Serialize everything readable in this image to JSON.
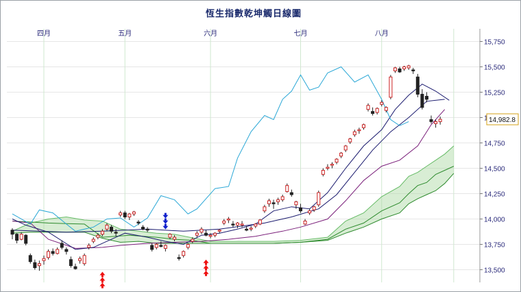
{
  "chart_data": {
    "type": "candlestick",
    "title": "恆生指數乾坤觸日線圖",
    "x_tick_labels": [
      "四月",
      "五月",
      "六月",
      "七月",
      "八月"
    ],
    "y_tick_labels": [
      "15,750",
      "15,500",
      "15,250",
      "15,000",
      "14,750",
      "14,500",
      "14,250",
      "14,000",
      "13,750",
      "13,500"
    ],
    "y_ticks": [
      15750,
      15500,
      15250,
      15000,
      14750,
      14500,
      14250,
      14000,
      13750,
      13500
    ],
    "ylim": [
      13375,
      15875
    ],
    "last_price_label": "14,982.8",
    "last_price": 14982.8,
    "grid": true,
    "colors": {
      "candle_up": "#cc2222",
      "candle_down": "#222222",
      "tenkan": "#7a1f7a",
      "kijun": "#1a1a6e",
      "chikou": "#2aa7d6",
      "cloud_line_a": "#2e8b2e",
      "cloud_line_b": "#66bb66",
      "cloud_fill": "#a8d8a0",
      "arrow_up": "#ee1111",
      "arrow_down": "#1122cc",
      "title": "#1a2a6c"
    },
    "candles": [
      [
        13890,
        13910,
        13800,
        13850
      ],
      [
        13850,
        13860,
        13760,
        13790
      ],
      [
        13800,
        13870,
        13790,
        13850
      ],
      [
        13840,
        13850,
        13740,
        13760
      ],
      [
        13640,
        13660,
        13560,
        13580
      ],
      [
        13570,
        13600,
        13500,
        13520
      ],
      [
        13540,
        13590,
        13490,
        13560
      ],
      [
        13590,
        13640,
        13550,
        13610
      ],
      [
        13620,
        13700,
        13600,
        13680
      ],
      [
        13680,
        13710,
        13640,
        13660
      ],
      [
        13660,
        13720,
        13650,
        13700
      ],
      [
        13760,
        13790,
        13700,
        13720
      ],
      [
        13700,
        13720,
        13650,
        13680
      ],
      [
        13600,
        13630,
        13520,
        13540
      ],
      [
        13530,
        13560,
        13500,
        13510
      ],
      [
        13590,
        13630,
        13560,
        13610
      ],
      [
        13560,
        13660,
        13540,
        13640
      ],
      [
        13720,
        13760,
        13700,
        13740
      ],
      [
        13780,
        13820,
        13760,
        13800
      ],
      [
        13820,
        13860,
        13800,
        13840
      ],
      [
        13850,
        13900,
        13830,
        13880
      ],
      [
        13900,
        13960,
        13880,
        13940
      ],
      [
        13920,
        13940,
        13860,
        13880
      ],
      [
        13870,
        13900,
        13830,
        13860
      ],
      [
        14040,
        14080,
        14020,
        14060
      ],
      [
        14060,
        14080,
        14000,
        14020
      ],
      [
        14020,
        14060,
        13990,
        14050
      ],
      [
        14050,
        14080,
        14030,
        14070
      ],
      [
        13970,
        13990,
        13940,
        13960
      ],
      [
        13920,
        13940,
        13890,
        13900
      ],
      [
        13900,
        13920,
        13870,
        13890
      ],
      [
        13740,
        13760,
        13680,
        13700
      ],
      [
        13720,
        13760,
        13700,
        13750
      ],
      [
        13740,
        13780,
        13720,
        13730
      ],
      [
        13710,
        13750,
        13680,
        13740
      ],
      [
        13820,
        13860,
        13800,
        13850
      ],
      [
        13800,
        13840,
        13780,
        13820
      ],
      [
        13620,
        13650,
        13590,
        13610
      ],
      [
        13640,
        13690,
        13620,
        13680
      ],
      [
        13720,
        13760,
        13700,
        13750
      ],
      [
        13780,
        13820,
        13760,
        13800
      ],
      [
        13840,
        13880,
        13820,
        13860
      ],
      [
        13870,
        13920,
        13850,
        13900
      ],
      [
        13860,
        13890,
        13830,
        13840
      ],
      [
        13830,
        13860,
        13810,
        13840
      ],
      [
        13840,
        13870,
        13820,
        13860
      ],
      [
        13880,
        13900,
        13860,
        13890
      ],
      [
        13960,
        14000,
        13940,
        13980
      ],
      [
        13990,
        14020,
        13960,
        14000
      ],
      [
        13950,
        13980,
        13920,
        13940
      ],
      [
        13940,
        13970,
        13910,
        13960
      ],
      [
        13940,
        13980,
        13920,
        13950
      ],
      [
        13900,
        13930,
        13880,
        13890
      ],
      [
        13900,
        13930,
        13880,
        13910
      ],
      [
        13930,
        13960,
        13910,
        13950
      ],
      [
        13950,
        14000,
        13940,
        13990
      ],
      [
        14080,
        14140,
        14060,
        14120
      ],
      [
        14150,
        14200,
        14120,
        14180
      ],
      [
        14160,
        14190,
        14100,
        14150
      ],
      [
        14170,
        14210,
        14140,
        14190
      ],
      [
        14190,
        14240,
        14170,
        14220
      ],
      [
        14270,
        14350,
        14260,
        14330
      ],
      [
        14260,
        14290,
        14220,
        14240
      ],
      [
        14140,
        14180,
        14100,
        14170
      ],
      [
        14110,
        14150,
        14060,
        14080
      ],
      [
        13950,
        14000,
        13940,
        13980
      ],
      [
        14060,
        14100,
        14040,
        14080
      ],
      [
        14090,
        14130,
        14070,
        14120
      ],
      [
        14140,
        14280,
        14120,
        14260
      ],
      [
        14440,
        14500,
        14420,
        14480
      ],
      [
        14500,
        14540,
        14480,
        14510
      ],
      [
        14530,
        14560,
        14500,
        14540
      ],
      [
        14560,
        14600,
        14540,
        14590
      ],
      [
        14620,
        14660,
        14600,
        14650
      ],
      [
        14680,
        14730,
        14660,
        14720
      ],
      [
        14760,
        14800,
        14740,
        14790
      ],
      [
        14830,
        14880,
        14810,
        14860
      ],
      [
        14870,
        14900,
        14840,
        14880
      ],
      [
        14900,
        14940,
        14880,
        14930
      ],
      [
        15080,
        15140,
        15060,
        15120
      ],
      [
        15060,
        15100,
        15020,
        15040
      ],
      [
        15050,
        15100,
        15030,
        15090
      ],
      [
        15130,
        15170,
        15110,
        15150
      ],
      [
        15070,
        15110,
        15050,
        15100
      ],
      [
        15200,
        15420,
        15180,
        15400
      ],
      [
        15460,
        15500,
        15440,
        15490
      ],
      [
        15480,
        15500,
        15440,
        15450
      ],
      [
        15480,
        15510,
        15460,
        15500
      ],
      [
        15490,
        15520,
        15470,
        15510
      ],
      [
        15470,
        15490,
        15430,
        15460
      ],
      [
        15400,
        15430,
        15200,
        15230
      ],
      [
        15230,
        15280,
        15080,
        15100
      ],
      [
        15210,
        15250,
        15150,
        15180
      ],
      [
        14980,
        15020,
        14940,
        14960
      ],
      [
        14940,
        14980,
        14900,
        14960
      ],
      [
        14960,
        15010,
        14930,
        14983
      ]
    ],
    "tenkan": [
      [
        0,
        14000
      ],
      [
        3,
        13940
      ],
      [
        8,
        13870
      ],
      [
        14,
        13700
      ],
      [
        18,
        13720
      ],
      [
        22,
        13800
      ],
      [
        25,
        13860
      ],
      [
        30,
        13820
      ],
      [
        34,
        13780
      ],
      [
        38,
        13750
      ],
      [
        42,
        13840
      ],
      [
        46,
        13860
      ],
      [
        50,
        13900
      ],
      [
        54,
        13950
      ],
      [
        58,
        14080
      ],
      [
        62,
        14120
      ],
      [
        66,
        14100
      ],
      [
        70,
        14260
      ],
      [
        74,
        14500
      ],
      [
        78,
        14720
      ],
      [
        82,
        14880
      ],
      [
        85,
        15080
      ],
      [
        88,
        15220
      ],
      [
        91,
        15330
      ],
      [
        94,
        15260
      ],
      [
        97,
        15170
      ]
    ],
    "kijun": [
      [
        0,
        13890
      ],
      [
        12,
        13870
      ],
      [
        20,
        13880
      ],
      [
        30,
        13900
      ],
      [
        38,
        13880
      ],
      [
        46,
        13900
      ],
      [
        56,
        13960
      ],
      [
        62,
        14020
      ],
      [
        68,
        14100
      ],
      [
        72,
        14240
      ],
      [
        76,
        14460
      ],
      [
        80,
        14680
      ],
      [
        84,
        14860
      ],
      [
        88,
        15000
      ],
      [
        92,
        15160
      ],
      [
        96,
        15180
      ]
    ],
    "tenkan_b": [
      [
        0,
        13980
      ],
      [
        4,
        13960
      ],
      [
        8,
        13800
      ],
      [
        14,
        13710
      ],
      [
        20,
        13720
      ],
      [
        24,
        13740
      ],
      [
        30,
        13760
      ],
      [
        36,
        13770
      ],
      [
        42,
        13780
      ],
      [
        48,
        13800
      ],
      [
        54,
        13830
      ],
      [
        60,
        13880
      ],
      [
        64,
        13920
      ],
      [
        70,
        14000
      ],
      [
        74,
        14180
      ],
      [
        78,
        14380
      ],
      [
        82,
        14520
      ],
      [
        86,
        14580
      ],
      [
        90,
        14720
      ],
      [
        93,
        14930
      ],
      [
        96,
        15080
      ]
    ],
    "chikou": [
      [
        0,
        14050
      ],
      [
        4,
        13950
      ],
      [
        6,
        14090
      ],
      [
        9,
        14060
      ],
      [
        12,
        13950
      ],
      [
        14,
        13880
      ],
      [
        18,
        13920
      ],
      [
        21,
        14000
      ],
      [
        24,
        14010
      ],
      [
        27,
        13920
      ],
      [
        30,
        14010
      ],
      [
        33,
        14230
      ],
      [
        36,
        14190
      ],
      [
        39,
        14050
      ],
      [
        41,
        14100
      ],
      [
        45,
        14300
      ],
      [
        48,
        14320
      ],
      [
        50,
        14600
      ],
      [
        53,
        14860
      ],
      [
        56,
        15020
      ],
      [
        58,
        14980
      ],
      [
        60,
        15180
      ],
      [
        62,
        15260
      ],
      [
        64,
        15420
      ],
      [
        66,
        15270
      ],
      [
        68,
        15300
      ],
      [
        70,
        15440
      ],
      [
        73,
        15500
      ],
      [
        76,
        15350
      ],
      [
        79,
        15420
      ],
      [
        82,
        15180
      ],
      [
        84,
        14980
      ],
      [
        86,
        14920
      ],
      [
        88,
        14960
      ]
    ],
    "span_a": [
      [
        0,
        13980
      ],
      [
        4,
        13970
      ],
      [
        8,
        13960
      ],
      [
        12,
        13955
      ],
      [
        16,
        13950
      ],
      [
        20,
        13820
      ],
      [
        26,
        13840
      ],
      [
        32,
        13820
      ],
      [
        36,
        13800
      ],
      [
        40,
        13790
      ],
      [
        44,
        13760
      ],
      [
        52,
        13760
      ],
      [
        58,
        13760
      ],
      [
        64,
        13770
      ],
      [
        70,
        13800
      ],
      [
        74,
        13900
      ],
      [
        78,
        13960
      ],
      [
        82,
        14080
      ],
      [
        86,
        14160
      ],
      [
        88,
        14250
      ],
      [
        90,
        14330
      ],
      [
        92,
        14360
      ],
      [
        94,
        14440
      ],
      [
        96,
        14480
      ],
      [
        98,
        14520
      ]
    ],
    "span_b": [
      [
        0,
        13860
      ],
      [
        4,
        13870
      ],
      [
        8,
        13870
      ],
      [
        12,
        13870
      ],
      [
        16,
        13870
      ],
      [
        20,
        13810
      ],
      [
        24,
        13770
      ],
      [
        28,
        13780
      ],
      [
        32,
        13760
      ],
      [
        36,
        13760
      ],
      [
        44,
        13760
      ],
      [
        52,
        13760
      ],
      [
        58,
        13760
      ],
      [
        64,
        13770
      ],
      [
        70,
        13790
      ],
      [
        74,
        13860
      ],
      [
        78,
        13920
      ],
      [
        82,
        14000
      ],
      [
        86,
        14060
      ],
      [
        88,
        14150
      ],
      [
        90,
        14200
      ],
      [
        92,
        14240
      ],
      [
        94,
        14280
      ],
      [
        96,
        14350
      ],
      [
        98,
        14450
      ]
    ],
    "span_a_upper": [
      [
        0,
        13880
      ],
      [
        4,
        13960
      ],
      [
        8,
        14000
      ],
      [
        12,
        14020
      ],
      [
        16,
        13990
      ],
      [
        20,
        13980
      ],
      [
        24,
        13900
      ],
      [
        28,
        13880
      ],
      [
        32,
        13860
      ],
      [
        36,
        13850
      ],
      [
        44,
        13780
      ],
      [
        52,
        13780
      ],
      [
        58,
        13780
      ],
      [
        64,
        13790
      ],
      [
        70,
        13820
      ],
      [
        74,
        13980
      ],
      [
        78,
        14060
      ],
      [
        82,
        14220
      ],
      [
        86,
        14320
      ],
      [
        88,
        14420
      ],
      [
        90,
        14460
      ],
      [
        92,
        14520
      ],
      [
        94,
        14580
      ],
      [
        96,
        14640
      ],
      [
        98,
        14720
      ]
    ],
    "arrows_up": [
      {
        "index": 20,
        "value": 13480
      },
      {
        "index": 43,
        "value": 13600
      }
    ],
    "arrows_down": [
      {
        "index": 34,
        "value": 14060
      }
    ]
  }
}
